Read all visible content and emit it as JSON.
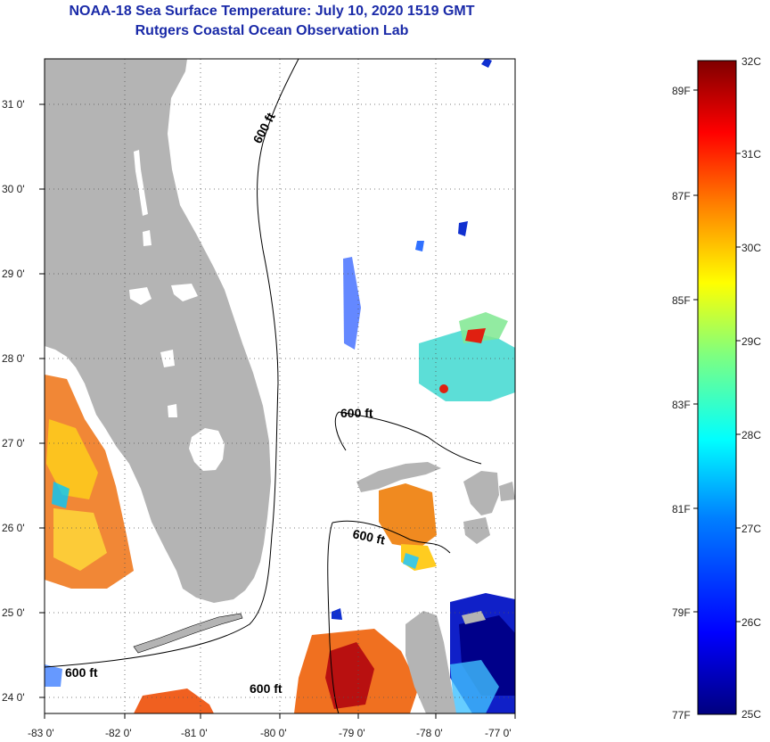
{
  "title": "NOAA-18 Sea Surface Temperature:  July 10, 2020 1519 GMT",
  "subtitle": "Rutgers Coastal Ocean Observation Lab",
  "map": {
    "lon_range": [
      -83,
      -77
    ],
    "lat_range": [
      23.85,
      31.45
    ],
    "lon_ticks": [
      "-83 0'",
      "-82 0'",
      "-81 0'",
      "-80 0'",
      "-79 0'",
      "-78 0'",
      "-77 0'"
    ],
    "lat_ticks": [
      "24 0'",
      "25 0'",
      "26 0'",
      "27 0'",
      "28 0'",
      "29 0'",
      "30 0'",
      "31 0'"
    ],
    "grid": true,
    "land_color": "#b4b4b4",
    "contour_labels": [
      "600 ft",
      "600 ft",
      "600 ft",
      "600 ft",
      "600 ft"
    ]
  },
  "colorbar": {
    "range_c": [
      25,
      32
    ],
    "celsius_labels": [
      "32C",
      "31C",
      "30C",
      "29C",
      "28C",
      "27C",
      "26C",
      "25C"
    ],
    "fahrenheit_labels": [
      "89F",
      "87F",
      "85F",
      "83F",
      "81F",
      "79F",
      "77F"
    ],
    "colors": [
      "#00007f",
      "#0000ff",
      "#007fff",
      "#00ffff",
      "#7fff7f",
      "#ffff00",
      "#ff7f00",
      "#ff0000",
      "#7f0000"
    ]
  }
}
